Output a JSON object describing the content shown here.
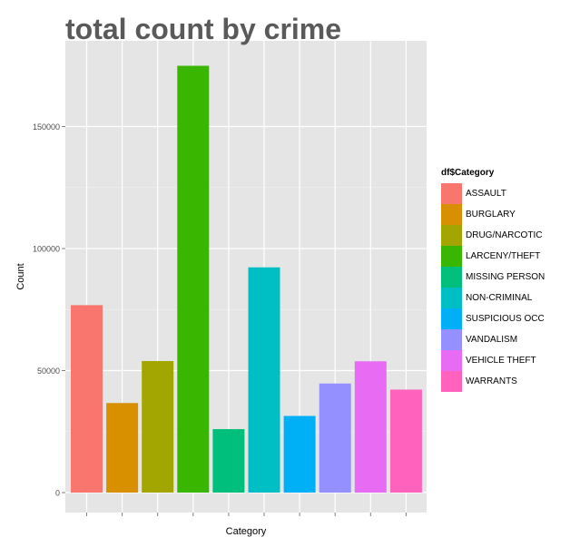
{
  "chart_data": {
    "type": "bar",
    "title": "total count by crime",
    "xlabel": "Category",
    "ylabel": "Count",
    "ylim": [
      0,
      175000
    ],
    "yticks": [
      0,
      50000,
      100000,
      150000
    ],
    "ytick_labels": [
      "0",
      "50000",
      "100000",
      "150000"
    ],
    "grid": true,
    "legend_title": "df$Category",
    "legend_position": "right",
    "categories": [
      "ASSAULT",
      "BURGLARY",
      "DRUG/NARCOTIC",
      "LARCENY/THEFT",
      "MISSING PERSON",
      "NON-CRIMINAL",
      "SUSPICIOUS OCC",
      "VANDALISM",
      "VEHICLE THEFT",
      "WARRANTS"
    ],
    "values": [
      76800,
      36700,
      53900,
      174900,
      26000,
      92300,
      31400,
      44700,
      53800,
      42200
    ],
    "colors": [
      "#F8766D",
      "#D89000",
      "#A3A500",
      "#39B600",
      "#00BF7D",
      "#00BFC4",
      "#00B0F6",
      "#9590FF",
      "#E76BF3",
      "#FF62BC"
    ]
  }
}
